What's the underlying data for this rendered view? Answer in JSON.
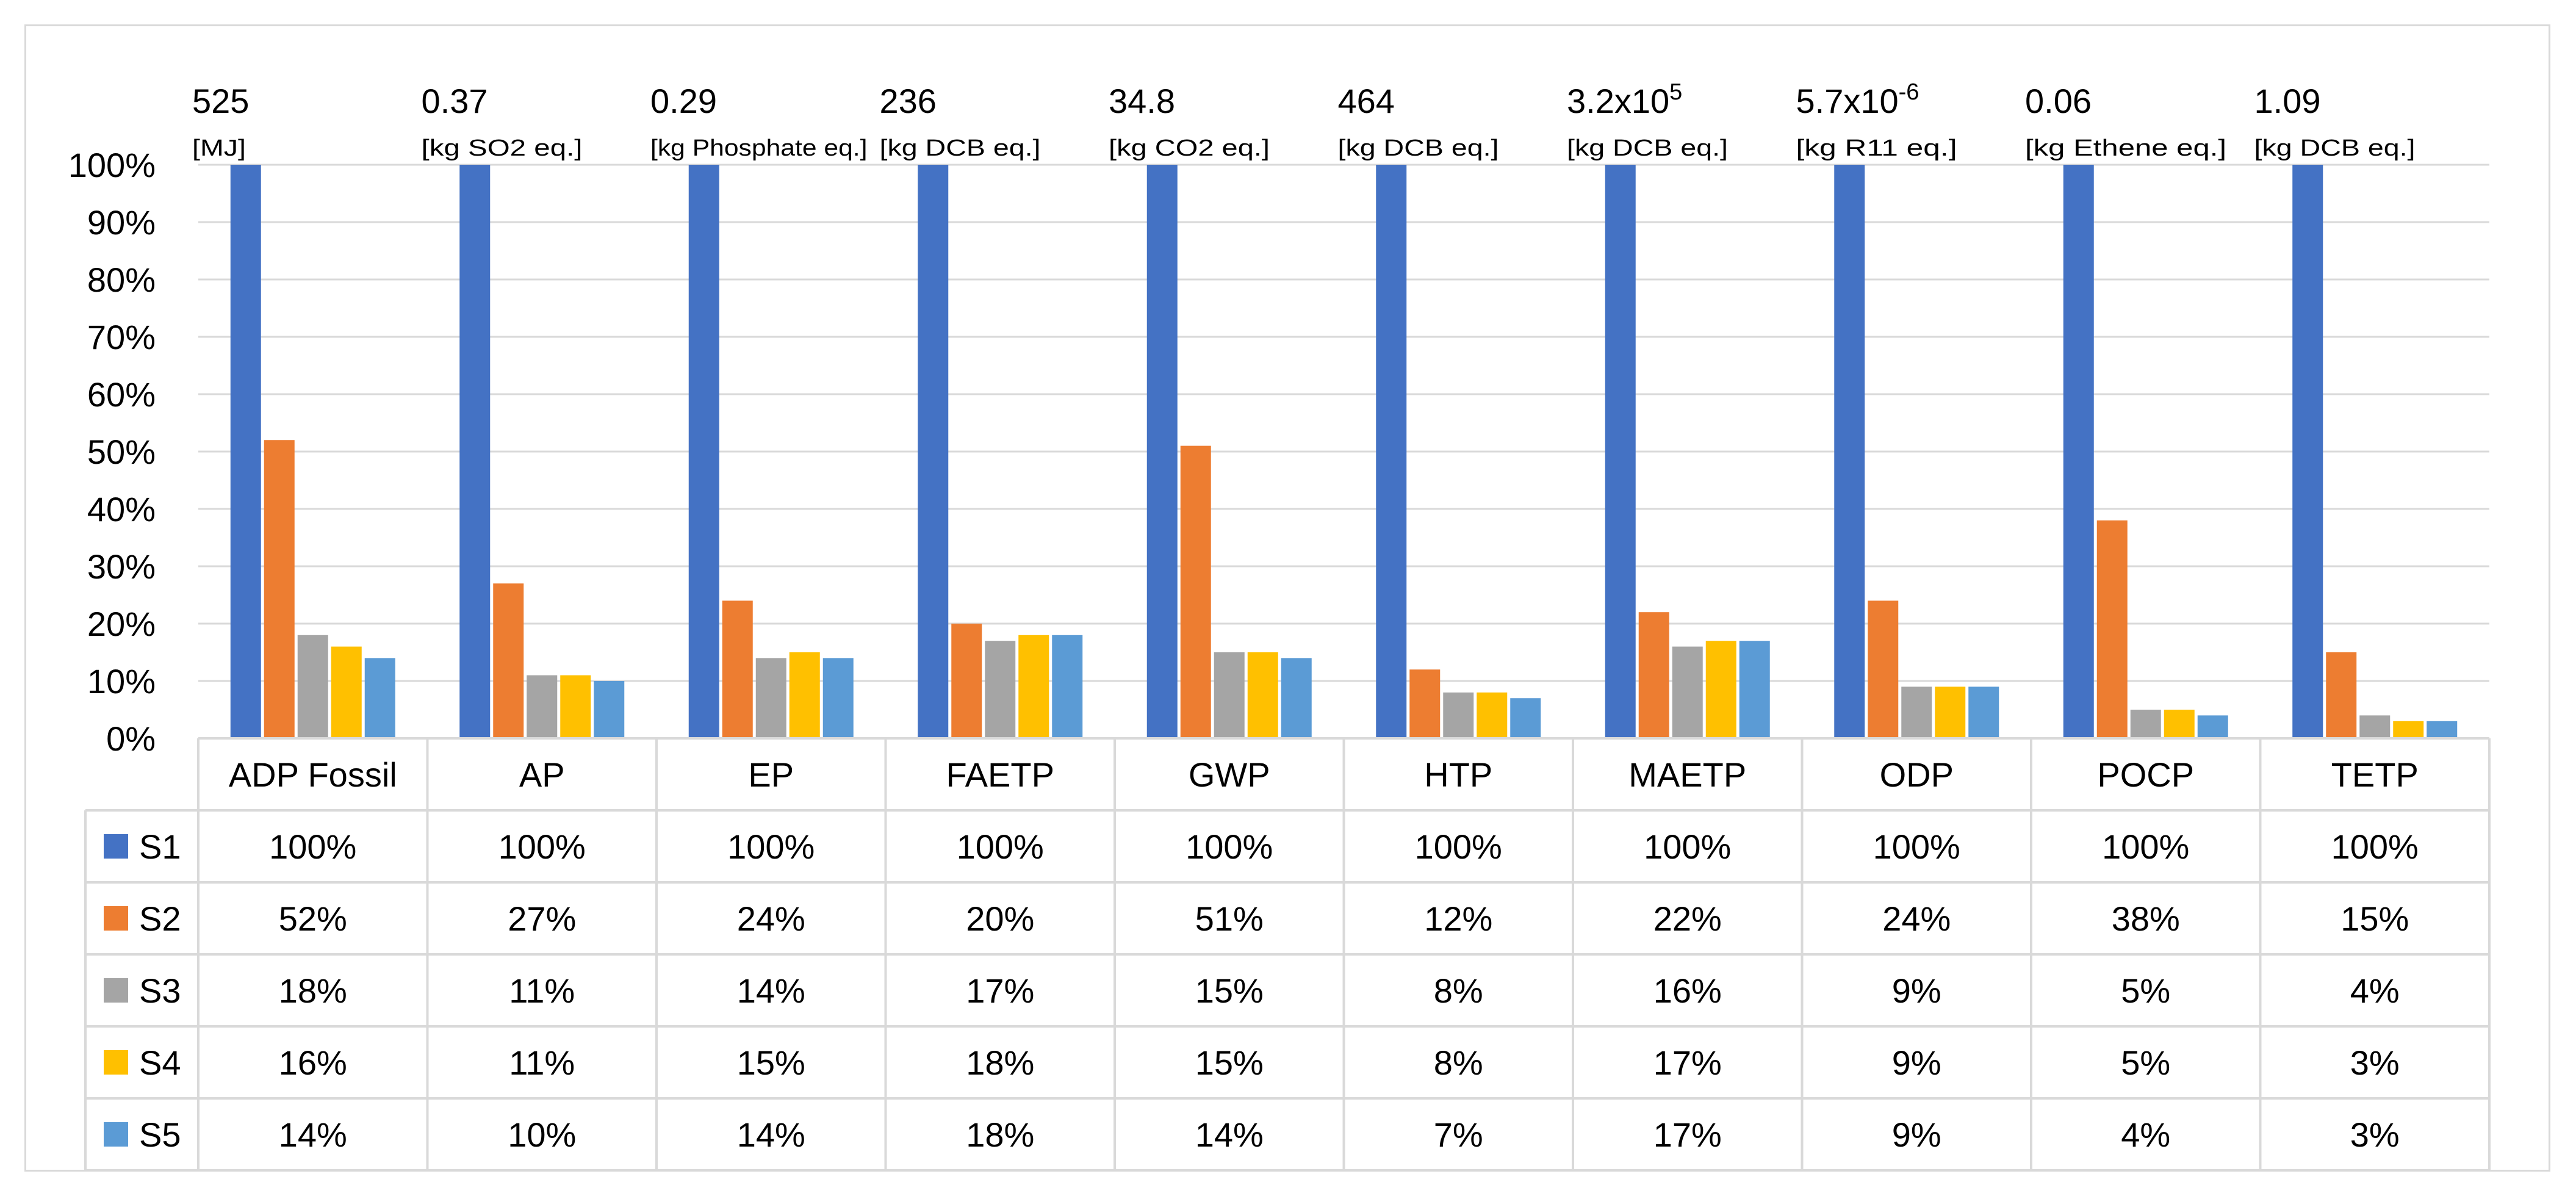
{
  "chart_data": {
    "type": "bar",
    "categories": [
      "ADP Fossil",
      "AP",
      "EP",
      "FAETP",
      "GWP",
      "HTP",
      "MAETP",
      "ODP",
      "POCP",
      "TETP"
    ],
    "reference_totals": [
      {
        "value": "525",
        "exp": "",
        "unit": "[MJ]"
      },
      {
        "value": "0.37",
        "exp": "",
        "unit": "[kg SO2 eq.]"
      },
      {
        "value": "0.29",
        "exp": "",
        "unit": "[kg Phosphate eq.]"
      },
      {
        "value": "236",
        "exp": "",
        "unit": "[kg DCB eq.]"
      },
      {
        "value": "34.8",
        "exp": "",
        "unit": "[kg CO2 eq.]"
      },
      {
        "value": "464",
        "exp": "",
        "unit": "[kg DCB eq.]"
      },
      {
        "value": "3.2x10",
        "exp": "5",
        "unit": "[kg DCB eq.]"
      },
      {
        "value": "5.7x10",
        "exp": "-6",
        "unit": "[kg R11 eq.]"
      },
      {
        "value": "0.06",
        "exp": "",
        "unit": "[kg Ethene eq.]"
      },
      {
        "value": "1.09",
        "exp": "",
        "unit": "[kg DCB eq.]"
      }
    ],
    "series": [
      {
        "name": "S1",
        "color": "#4472C4",
        "values": [
          100,
          100,
          100,
          100,
          100,
          100,
          100,
          100,
          100,
          100
        ]
      },
      {
        "name": "S2",
        "color": "#ED7D31",
        "values": [
          52,
          27,
          24,
          20,
          51,
          12,
          22,
          24,
          38,
          15
        ]
      },
      {
        "name": "S3",
        "color": "#A5A5A5",
        "values": [
          18,
          11,
          14,
          17,
          15,
          8,
          16,
          9,
          5,
          4
        ]
      },
      {
        "name": "S4",
        "color": "#FFC000",
        "values": [
          16,
          11,
          15,
          18,
          15,
          8,
          17,
          9,
          5,
          3
        ]
      },
      {
        "name": "S5",
        "color": "#5B9BD5",
        "values": [
          14,
          10,
          14,
          18,
          14,
          7,
          17,
          9,
          4,
          3
        ]
      }
    ],
    "y_ticks": [
      "0%",
      "10%",
      "20%",
      "30%",
      "40%",
      "50%",
      "60%",
      "70%",
      "80%",
      "90%",
      "100%"
    ],
    "ylim": [
      0,
      100
    ],
    "grid": true,
    "value_suffix": "%",
    "data_table": true
  }
}
